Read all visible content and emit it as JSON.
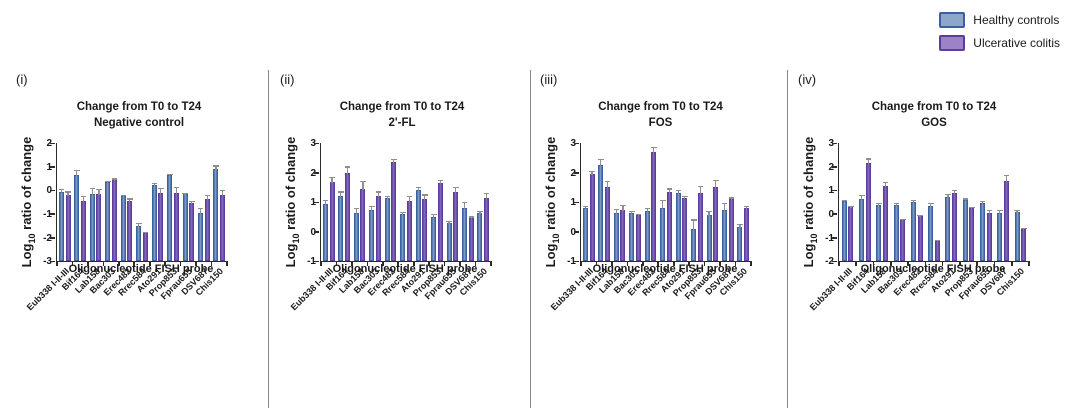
{
  "legend": {
    "items": [
      {
        "label": "Healthy controls",
        "fill": "#8fa6cb",
        "border": "#3c5f9e"
      },
      {
        "label": "Ulcerative colitis",
        "fill": "#9b82c9",
        "border": "#5b3d9e"
      }
    ]
  },
  "axis": {
    "ylabel_prefix": "Log",
    "ylabel_sub": "10",
    "ylabel_suffix": " ratio of change",
    "xlabel": "Oligonucleotide FISH probe"
  },
  "chart_data": {
    "type": "bar",
    "categories": [
      "Eub338 I-II-III",
      "Bif164",
      "Lab158",
      "Bac303",
      "Erec482",
      "Rrec584",
      "Ato291",
      "Prop853",
      "Fprau655",
      "DSV687",
      "Chis150"
    ],
    "series_colors": {
      "healthy": {
        "fill": "#7b99c6",
        "border": "#3c5f9e"
      },
      "uc": {
        "fill": "#8267b8",
        "border": "#5b3d9e"
      }
    },
    "legend_position": "top-right",
    "grid": false,
    "panels": [
      {
        "id": "i",
        "label": "(i)",
        "title_line1": "Change from T0 to T24",
        "title_line2": "Negative control",
        "ylim": [
          -3,
          2
        ],
        "yticks": [
          2,
          1,
          0,
          -1,
          -2,
          -3
        ],
        "series": [
          {
            "name": "Healthy controls",
            "values": [
              -0.05,
              0.65,
              -0.15,
              0.35,
              -0.25,
              -1.5,
              0.25,
              0.65,
              -0.15,
              -0.95,
              0.9
            ],
            "errors": [
              0.15,
              0.25,
              0.3,
              0.1,
              0.1,
              0.15,
              0.1,
              0.1,
              0.1,
              0.25,
              0.2
            ]
          },
          {
            "name": "Ulcerative colitis",
            "values": [
              -0.2,
              -0.45,
              -0.15,
              0.45,
              -0.45,
              -1.8,
              -0.1,
              -0.1,
              -0.55,
              -0.35,
              -0.2
            ],
            "errors": [
              0.2,
              0.25,
              0.25,
              0.1,
              0.15,
              0.1,
              0.25,
              0.3,
              0.15,
              0.2,
              0.25
            ]
          }
        ]
      },
      {
        "id": "ii",
        "label": "(ii)",
        "title_line1": "Change from T0 to T24",
        "title_line2": "2'-FL",
        "ylim": [
          -1,
          3
        ],
        "yticks": [
          3,
          2,
          1,
          0,
          -1
        ],
        "series": [
          {
            "name": "Healthy controls",
            "values": [
              0.95,
              1.2,
              0.65,
              0.75,
              1.15,
              0.6,
              1.4,
              0.5,
              0.3,
              0.8,
              0.65
            ],
            "errors": [
              0.15,
              0.2,
              0.2,
              0.15,
              0.1,
              0.1,
              0.15,
              0.15,
              0.1,
              0.25,
              0.1
            ]
          },
          {
            "name": "Ulcerative colitis",
            "values": [
              1.7,
              2.0,
              1.45,
              1.2,
              2.35,
              1.05,
              1.1,
              1.65,
              1.35,
              0.45,
              1.15
            ],
            "errors": [
              0.2,
              0.25,
              0.3,
              0.2,
              0.15,
              0.2,
              0.2,
              0.15,
              0.2,
              0.1,
              0.2
            ]
          }
        ]
      },
      {
        "id": "iii",
        "label": "(iii)",
        "title_line1": "Change from T0 to T24",
        "title_line2": "FOS",
        "ylim": [
          -1,
          3
        ],
        "yticks": [
          3,
          2,
          1,
          0,
          -1
        ],
        "series": [
          {
            "name": "Healthy controls",
            "values": [
              0.8,
              2.25,
              0.65,
              0.65,
              0.7,
              0.8,
              1.3,
              0.1,
              0.55,
              0.75,
              0.15
            ],
            "errors": [
              0.1,
              0.25,
              0.15,
              0.1,
              0.15,
              0.3,
              0.15,
              0.35,
              0.2,
              0.25,
              0.15
            ]
          },
          {
            "name": "Ulcerative colitis",
            "values": [
              1.95,
              1.5,
              0.75,
              0.55,
              2.7,
              1.35,
              1.15,
              1.3,
              1.5,
              1.1,
              0.8
            ],
            "errors": [
              0.15,
              0.25,
              0.2,
              0.1,
              0.2,
              0.15,
              0.1,
              0.3,
              0.3,
              0.1,
              0.1
            ]
          }
        ]
      },
      {
        "id": "iv",
        "label": "(iv)",
        "title_line1": "Change from T0 to T24",
        "title_line2": "GOS",
        "ylim": [
          -2,
          3
        ],
        "yticks": [
          3,
          2,
          1,
          0,
          -1,
          -2
        ],
        "series": [
          {
            "name": "Healthy controls",
            "values": [
              0.55,
              0.65,
              0.4,
              0.4,
              0.5,
              0.35,
              0.7,
              0.6,
              0.45,
              0.05,
              0.1
            ],
            "errors": [
              0.1,
              0.2,
              0.1,
              0.1,
              0.15,
              0.15,
              0.2,
              0.1,
              0.15,
              0.15,
              0.1
            ]
          },
          {
            "name": "Ulcerative colitis",
            "values": [
              0.3,
              2.15,
              1.2,
              -0.25,
              -0.1,
              -1.15,
              0.9,
              0.25,
              0.05,
              1.4,
              -0.65
            ],
            "errors": [
              0.1,
              0.25,
              0.2,
              0.1,
              0.1,
              0.1,
              0.15,
              0.1,
              0.15,
              0.3,
              0.1
            ]
          }
        ]
      }
    ]
  }
}
